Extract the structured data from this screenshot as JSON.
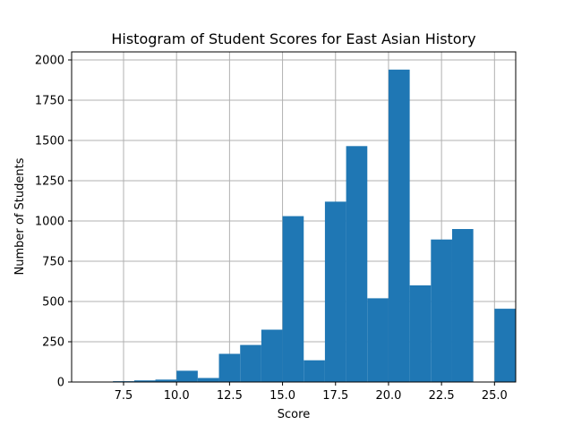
{
  "chart_data": {
    "type": "bar",
    "title": "Histogram of Student Scores for East Asian History",
    "xlabel": "Score",
    "ylabel": "Number of Students",
    "xlim": [
      5.05,
      26.0
    ],
    "ylim": [
      0,
      2050
    ],
    "x_ticks": [
      7.5,
      10.0,
      12.5,
      15.0,
      17.5,
      20.0,
      22.5,
      25.0
    ],
    "x_tick_labels": [
      "7.5",
      "10.0",
      "12.5",
      "15.0",
      "17.5",
      "20.0",
      "22.5",
      "25.0"
    ],
    "y_ticks": [
      0,
      250,
      500,
      750,
      1000,
      1250,
      1500,
      1750,
      2000
    ],
    "y_tick_labels": [
      "0",
      "250",
      "500",
      "750",
      "1000",
      "1250",
      "1500",
      "1750",
      "2000"
    ],
    "grid": true,
    "bar_color": "#1f77b4",
    "bin_edges": [
      6.0,
      7.0,
      8.0,
      9.0,
      10.0,
      11.0,
      12.0,
      13.0,
      14.0,
      15.0,
      16.0,
      17.0,
      18.0,
      19.0,
      20.0,
      21.0,
      22.0,
      23.0,
      24.0,
      25.0
    ],
    "values": [
      0,
      5,
      10,
      15,
      70,
      25,
      175,
      230,
      325,
      1030,
      135,
      1120,
      1465,
      520,
      1940,
      600,
      885,
      950,
      0,
      455
    ]
  }
}
